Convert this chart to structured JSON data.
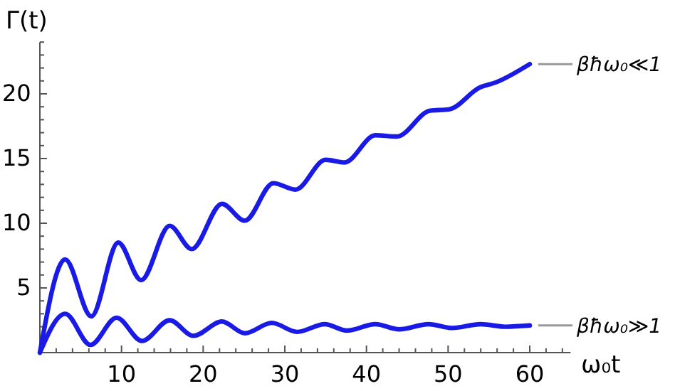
{
  "chart_data": {
    "type": "line",
    "xlabel": "ω₀t",
    "ylabel": "Γ(t)",
    "xlim": [
      0,
      65
    ],
    "ylim": [
      0,
      24
    ],
    "xticks": [
      {
        "value": 0,
        "label": null
      },
      {
        "value": 2,
        "label": null
      },
      {
        "value": 4,
        "label": null
      },
      {
        "value": 6,
        "label": null
      },
      {
        "value": 8,
        "label": null
      },
      10,
      {
        "value": 12,
        "label": null
      },
      {
        "value": 14,
        "label": null
      },
      {
        "value": 16,
        "label": null
      },
      {
        "value": 18,
        "label": null
      },
      20,
      {
        "value": 22,
        "label": null
      },
      {
        "value": 24,
        "label": null
      },
      {
        "value": 26,
        "label": null
      },
      {
        "value": 28,
        "label": null
      },
      30,
      {
        "value": 32,
        "label": null
      },
      {
        "value": 34,
        "label": null
      },
      {
        "value": 36,
        "label": null
      },
      {
        "value": 38,
        "label": null
      },
      40,
      {
        "value": 42,
        "label": null
      },
      {
        "value": 44,
        "label": null
      },
      {
        "value": 46,
        "label": null
      },
      {
        "value": 48,
        "label": null
      },
      50,
      {
        "value": 52,
        "label": null
      },
      {
        "value": 54,
        "label": null
      },
      {
        "value": 56,
        "label": null
      },
      {
        "value": 58,
        "label": null
      },
      60,
      {
        "value": 62,
        "label": null
      },
      {
        "value": 64,
        "label": null
      }
    ],
    "yticks": [
      {
        "value": 0,
        "label": null
      },
      {
        "value": 1,
        "label": null
      },
      {
        "value": 2,
        "label": null
      },
      {
        "value": 3,
        "label": null
      },
      {
        "value": 4,
        "label": null
      },
      5,
      {
        "value": 6,
        "label": null
      },
      {
        "value": 7,
        "label": null
      },
      {
        "value": 8,
        "label": null
      },
      {
        "value": 9,
        "label": null
      },
      10,
      {
        "value": 11,
        "label": null
      },
      {
        "value": 12,
        "label": null
      },
      {
        "value": 13,
        "label": null
      },
      {
        "value": 14,
        "label": null
      },
      15,
      {
        "value": 16,
        "label": null
      },
      {
        "value": 17,
        "label": null
      },
      {
        "value": 18,
        "label": null
      },
      {
        "value": 19,
        "label": null
      },
      20,
      {
        "value": 21,
        "label": null
      },
      {
        "value": 22,
        "label": null
      },
      {
        "value": 23,
        "label": null
      },
      {
        "value": 24,
        "label": null
      }
    ],
    "grid": false,
    "legend": false,
    "marker": "none",
    "line_style": "solid",
    "series": [
      {
        "name": "βħω₀≪1",
        "color": "#1a1ae6",
        "x": [
          0,
          3.1,
          6.3,
          9.6,
          12.4,
          15.9,
          18.6,
          22.3,
          25.1,
          28.6,
          31.3,
          35.0,
          37.3,
          41.1,
          43.7,
          47.8,
          50.1,
          53.9,
          55.9,
          60
        ],
        "values": [
          0,
          7.2,
          2.8,
          8.5,
          5.6,
          9.8,
          8.0,
          11.5,
          10.2,
          13.1,
          12.6,
          14.9,
          14.7,
          16.8,
          16.7,
          18.7,
          18.8,
          20.5,
          20.9,
          22.3
        ]
      },
      {
        "name": "βħω₀≫1",
        "color": "#1a1ae6",
        "x": [
          0,
          3.1,
          6.2,
          9.4,
          12.5,
          15.9,
          18.8,
          22.3,
          25.1,
          28.4,
          31.5,
          34.9,
          37.6,
          41.1,
          44.0,
          47.6,
          50.5,
          54.0,
          57.0,
          60
        ],
        "values": [
          0,
          3.0,
          0.6,
          2.7,
          0.9,
          2.5,
          1.3,
          2.4,
          1.5,
          2.3,
          1.6,
          2.2,
          1.7,
          2.2,
          1.8,
          2.2,
          1.9,
          2.2,
          2.0,
          2.1
        ]
      }
    ]
  }
}
